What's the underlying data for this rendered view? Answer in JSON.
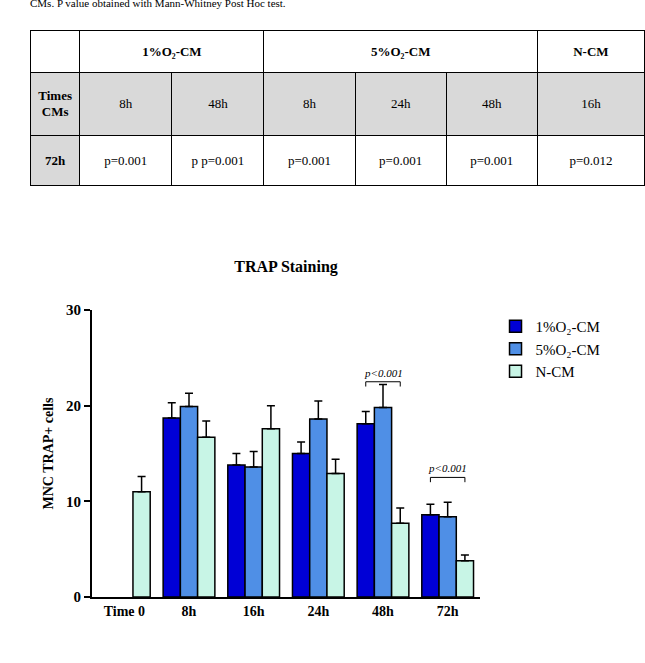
{
  "caption": "CMs. P value obtained with Mann-Whitney Post Hoc test.",
  "table": {
    "header": [
      {
        "text": "",
        "span": 1
      },
      {
        "text": "1%O₂-CM",
        "span": 2
      },
      {
        "text": "5%O₂-CM",
        "span": 3
      },
      {
        "text": "N-CM",
        "span": 1
      }
    ],
    "rows": [
      [
        "Times CMs",
        "8h",
        "48h",
        "8h",
        "24h",
        "48h",
        "16h"
      ],
      [
        "72h",
        "p=0.001",
        "p p=0.001",
        "p=0.001",
        "p=0.001",
        "p=0.001",
        "p=0.012"
      ]
    ]
  },
  "chart_data": {
    "type": "bar",
    "title": "TRAP Staining",
    "y_label": "MNC TRAP+ cells",
    "categories": [
      "Time 0",
      "8h",
      "16h",
      "24h",
      "48h",
      "72h"
    ],
    "series": [
      {
        "name": "1%O₂-CM",
        "color": "#0000d6",
        "values": [
          null,
          18.7,
          13.8,
          15.0,
          18.1,
          8.6
        ],
        "errors": [
          null,
          1.6,
          1.2,
          1.2,
          1.3,
          1.1
        ]
      },
      {
        "name": "5%O₂-CM",
        "color": "#4f8fe6",
        "values": [
          null,
          19.9,
          13.6,
          18.6,
          19.8,
          8.4
        ],
        "errors": [
          null,
          1.4,
          1.6,
          1.9,
          2.4,
          1.5
        ]
      },
      {
        "name": "N-CM",
        "color": "#c8f5e6",
        "values": [
          11.0,
          16.7,
          17.6,
          12.9,
          7.7,
          3.8
        ],
        "errors": [
          1.6,
          1.7,
          2.4,
          1.5,
          1.6,
          0.6
        ]
      }
    ],
    "ylim": [
      0,
      30
    ],
    "yticks": [
      0,
      10,
      20,
      30
    ],
    "grid": false,
    "legend": "right",
    "annotations": [
      {
        "text": "p<0.001",
        "category": "48h",
        "y": 22.5
      },
      {
        "text": "p<0.001",
        "category": "72h",
        "y": 12.5
      }
    ]
  }
}
